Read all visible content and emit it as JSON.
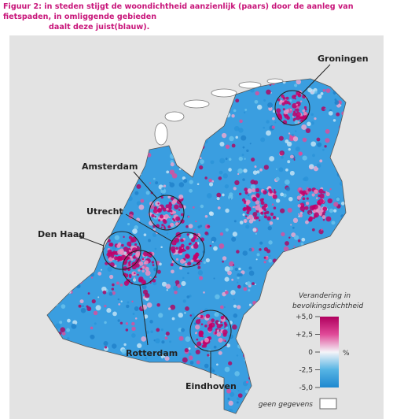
{
  "caption": [
    "Figuur 2: in steden stijgt de woondichtheid aanzienlijk (paars) door de aanleg van fietspaden, in omliggende gebieden",
    "daalt deze juist(blauw)."
  ],
  "cities": [
    "Groningen",
    "Amsterdam",
    "Utrecht",
    "Den Haag",
    "Rotterdam",
    "Eindhoven"
  ],
  "legend": {
    "title": [
      "Verandering in",
      "bevolkingsdichtheid"
    ],
    "ticks": [
      {
        "value": 5,
        "label": "+5,0"
      },
      {
        "value": 2.5,
        "label": "+2,5"
      },
      0,
      {
        "value": -2.5,
        "label": "-2,5"
      },
      {
        "value": -5,
        "label": "-5,0"
      }
    ],
    "lim": [
      -5,
      5
    ],
    "unit": "%",
    "no_data": "geen gegevens"
  }
}
